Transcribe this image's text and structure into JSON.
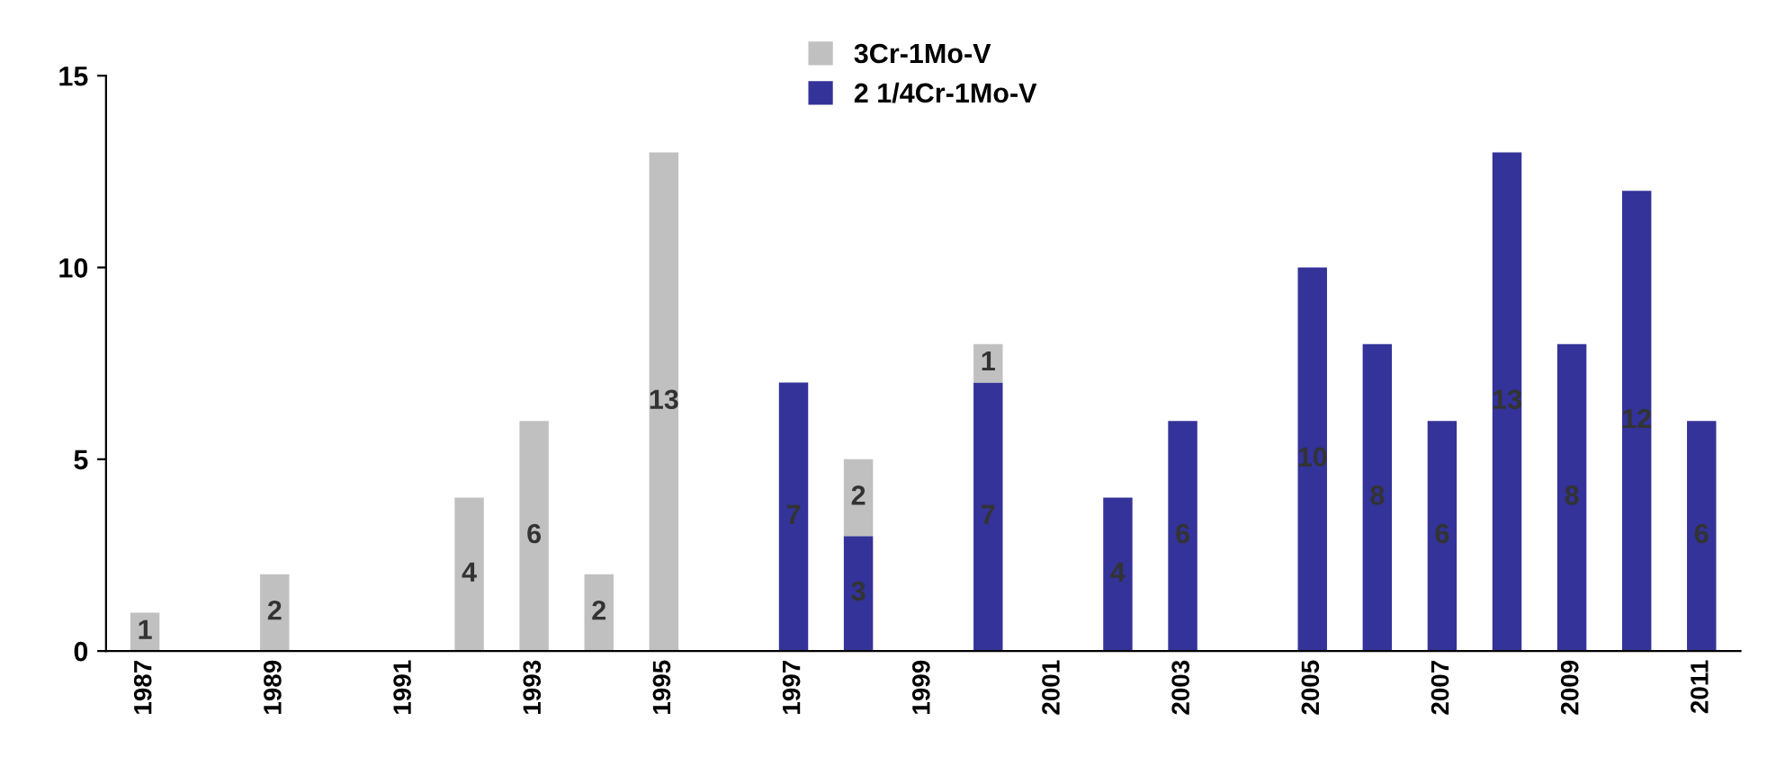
{
  "chart_data": {
    "type": "bar",
    "stacked": true,
    "data_labels": true,
    "legend": "top",
    "grid": false,
    "categories": [
      "1987",
      null,
      "1989",
      null,
      "1991",
      null,
      "1993",
      null,
      "1995",
      null,
      "1997",
      null,
      "1999",
      null,
      "2001",
      null,
      "2003",
      null,
      "2005",
      null,
      "2007",
      null,
      "2009",
      null,
      "2011"
    ],
    "series": [
      {
        "name": "2 1/4Cr-1Mo-V",
        "color": "#333399",
        "values": [
          null,
          null,
          null,
          null,
          null,
          null,
          null,
          null,
          null,
          null,
          7,
          3,
          null,
          7,
          null,
          4,
          6,
          null,
          10,
          8,
          6,
          13,
          8,
          12,
          6
        ]
      },
      {
        "name": "3Cr-1Mo-V",
        "color": "#c0c0c0",
        "values": [
          1,
          null,
          2,
          null,
          null,
          4,
          6,
          2,
          13,
          null,
          null,
          2,
          null,
          1,
          null,
          null,
          null,
          null,
          null,
          null,
          null,
          null,
          null,
          null,
          null
        ]
      }
    ],
    "ylim": [
      0,
      15
    ],
    "yticks": [
      0,
      5,
      10,
      15
    ]
  }
}
